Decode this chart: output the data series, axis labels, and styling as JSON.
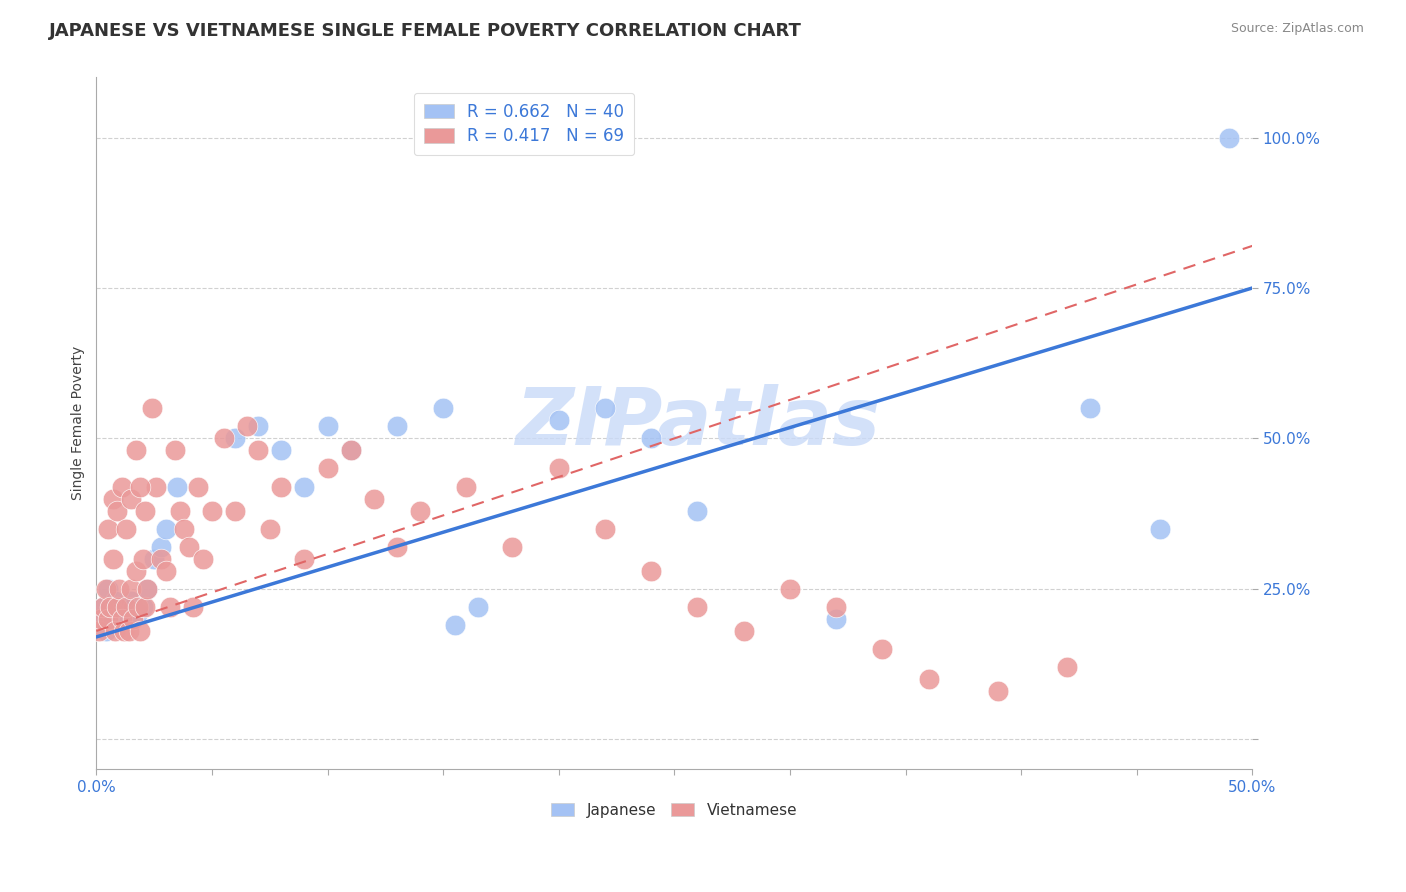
{
  "title": "JAPANESE VS VIETNAMESE SINGLE FEMALE POVERTY CORRELATION CHART",
  "source": "Source: ZipAtlas.com",
  "ylabel": "Single Female Poverty",
  "xlim": [
    0.0,
    0.5
  ],
  "ylim": [
    -0.05,
    1.1
  ],
  "y_ticks": [
    0.0,
    0.25,
    0.5,
    0.75,
    1.0
  ],
  "y_tick_labels": [
    "",
    "25.0%",
    "50.0%",
    "75.0%",
    "100.0%"
  ],
  "x_tick_labels": [
    "0.0%",
    "",
    "",
    "",
    "",
    "",
    "",
    "",
    "",
    "",
    "50.0%"
  ],
  "japanese_R": 0.662,
  "japanese_N": 40,
  "vietnamese_R": 0.417,
  "vietnamese_N": 69,
  "japanese_color": "#a4c2f4",
  "vietnamese_color": "#ea9999",
  "japanese_line_color": "#3c78d8",
  "vietnamese_line_color": "#e06666",
  "tick_color": "#3c78d8",
  "watermark_color": "#c9daf8",
  "japanese_x": [
    0.002,
    0.003,
    0.004,
    0.005,
    0.006,
    0.007,
    0.008,
    0.009,
    0.01,
    0.011,
    0.012,
    0.013,
    0.014,
    0.015,
    0.016,
    0.018,
    0.02,
    0.022,
    0.025,
    0.028,
    0.03,
    0.035,
    0.06,
    0.07,
    0.08,
    0.09,
    0.1,
    0.11,
    0.13,
    0.15,
    0.155,
    0.165,
    0.2,
    0.22,
    0.24,
    0.26,
    0.32,
    0.43,
    0.46,
    0.49
  ],
  "japanese_y": [
    0.2,
    0.22,
    0.18,
    0.25,
    0.22,
    0.2,
    0.23,
    0.22,
    0.21,
    0.2,
    0.21,
    0.22,
    0.2,
    0.23,
    0.22,
    0.21,
    0.22,
    0.25,
    0.3,
    0.32,
    0.35,
    0.42,
    0.5,
    0.52,
    0.48,
    0.42,
    0.52,
    0.48,
    0.52,
    0.55,
    0.19,
    0.22,
    0.53,
    0.55,
    0.5,
    0.38,
    0.2,
    0.55,
    0.35,
    1.0
  ],
  "vietnamese_x": [
    0.001,
    0.002,
    0.003,
    0.004,
    0.005,
    0.006,
    0.007,
    0.008,
    0.009,
    0.01,
    0.011,
    0.012,
    0.013,
    0.014,
    0.015,
    0.016,
    0.017,
    0.018,
    0.019,
    0.02,
    0.021,
    0.022,
    0.024,
    0.026,
    0.028,
    0.03,
    0.032,
    0.034,
    0.036,
    0.038,
    0.04,
    0.042,
    0.044,
    0.046,
    0.05,
    0.055,
    0.06,
    0.065,
    0.07,
    0.075,
    0.08,
    0.09,
    0.1,
    0.11,
    0.12,
    0.13,
    0.14,
    0.16,
    0.18,
    0.2,
    0.22,
    0.24,
    0.26,
    0.28,
    0.3,
    0.32,
    0.34,
    0.36,
    0.39,
    0.42,
    0.005,
    0.007,
    0.009,
    0.011,
    0.013,
    0.015,
    0.017,
    0.019,
    0.021
  ],
  "vietnamese_y": [
    0.18,
    0.2,
    0.22,
    0.25,
    0.2,
    0.22,
    0.3,
    0.18,
    0.22,
    0.25,
    0.2,
    0.18,
    0.22,
    0.18,
    0.25,
    0.2,
    0.28,
    0.22,
    0.18,
    0.3,
    0.22,
    0.25,
    0.55,
    0.42,
    0.3,
    0.28,
    0.22,
    0.48,
    0.38,
    0.35,
    0.32,
    0.22,
    0.42,
    0.3,
    0.38,
    0.5,
    0.38,
    0.52,
    0.48,
    0.35,
    0.42,
    0.3,
    0.45,
    0.48,
    0.4,
    0.32,
    0.38,
    0.42,
    0.32,
    0.45,
    0.35,
    0.28,
    0.22,
    0.18,
    0.25,
    0.22,
    0.15,
    0.1,
    0.08,
    0.12,
    0.35,
    0.4,
    0.38,
    0.42,
    0.35,
    0.4,
    0.48,
    0.42,
    0.38
  ],
  "jp_line_x0": 0.0,
  "jp_line_y0": 0.17,
  "jp_line_x1": 0.5,
  "jp_line_y1": 0.75,
  "vn_line_x0": 0.0,
  "vn_line_y0": 0.18,
  "vn_line_x1": 0.5,
  "vn_line_y1": 0.82
}
